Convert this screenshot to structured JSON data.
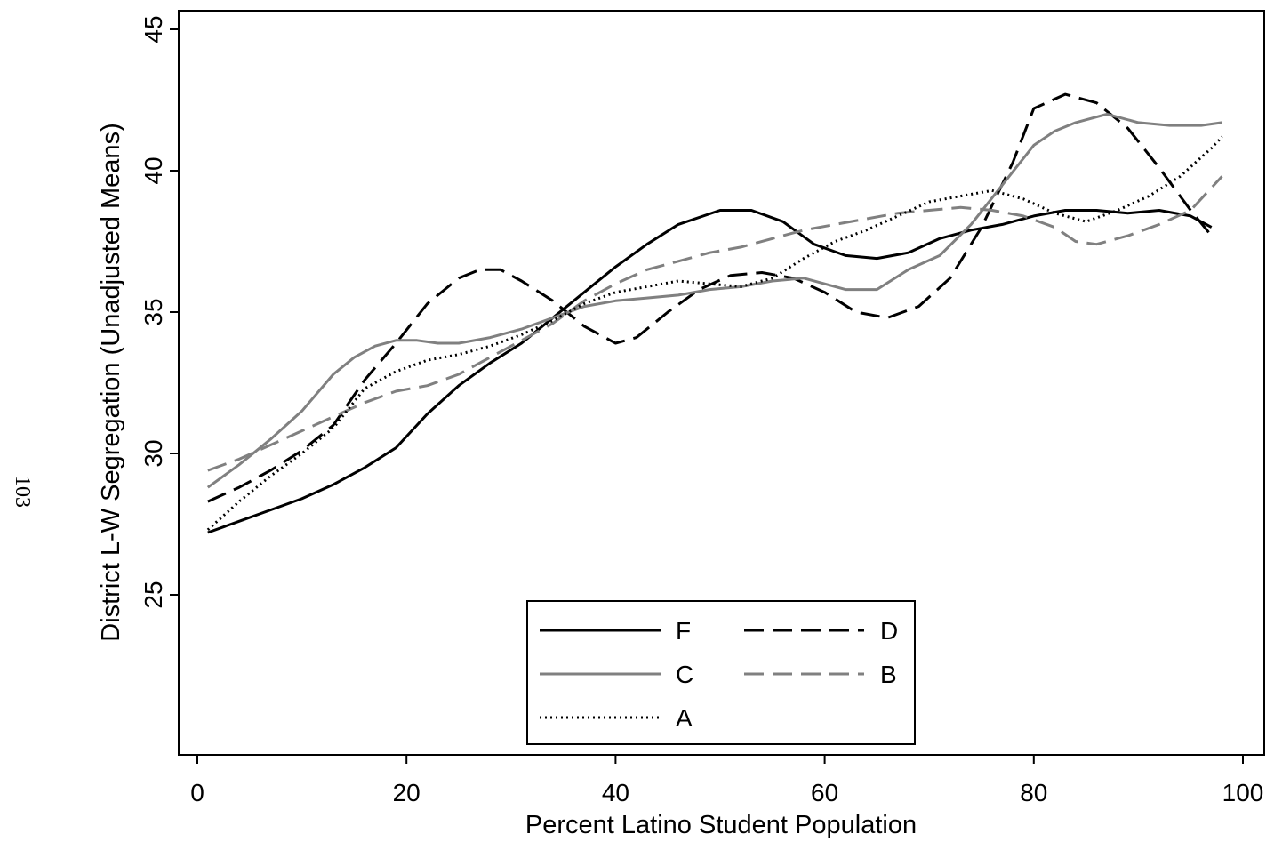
{
  "page_number": "103",
  "chart_data": {
    "type": "line",
    "title": "",
    "xlabel": "Percent Latino Student Population",
    "ylabel": "District L-W Segregation (Unadjusted Means)",
    "xlim": [
      -1,
      101
    ],
    "ylim": [
      19.5,
      46
    ],
    "xticks": [
      0,
      20,
      40,
      60,
      80,
      100
    ],
    "yticks": [
      25,
      30,
      35,
      40,
      45
    ],
    "grid": false,
    "legend_position": "bottom-center",
    "series": [
      {
        "name": "F",
        "color": "#000000",
        "dash": "solid",
        "x": [
          1,
          4,
          7,
          10,
          13,
          16,
          19,
          22,
          25,
          28,
          31,
          34,
          37,
          40,
          43,
          46,
          50,
          53,
          56,
          59,
          62,
          65,
          68,
          71,
          74,
          77,
          80,
          83,
          86,
          89,
          92,
          95,
          97
        ],
        "y": [
          27.2,
          27.6,
          28.0,
          28.4,
          28.9,
          29.5,
          30.2,
          31.4,
          32.4,
          33.2,
          33.9,
          34.8,
          35.7,
          36.6,
          37.4,
          38.1,
          38.6,
          38.6,
          38.2,
          37.4,
          37.0,
          36.9,
          37.1,
          37.6,
          37.9,
          38.1,
          38.4,
          38.6,
          38.6,
          38.5,
          38.6,
          38.4,
          38.0
        ]
      },
      {
        "name": "D",
        "color": "#000000",
        "dash": "dashed",
        "x": [
          1,
          4,
          7,
          10,
          13,
          16,
          19,
          22,
          25,
          27,
          29,
          31,
          34,
          37,
          40,
          42,
          45,
          48,
          51,
          54,
          57,
          60,
          63,
          66,
          69,
          72,
          75,
          78,
          80,
          83,
          86,
          89,
          92,
          95,
          97
        ],
        "y": [
          28.3,
          28.8,
          29.4,
          30.1,
          31.0,
          32.6,
          33.9,
          35.3,
          36.2,
          36.5,
          36.5,
          36.1,
          35.4,
          34.5,
          33.9,
          34.1,
          35.0,
          35.8,
          36.3,
          36.4,
          36.2,
          35.7,
          35.0,
          34.8,
          35.2,
          36.2,
          38.0,
          40.3,
          42.2,
          42.7,
          42.4,
          41.5,
          40.1,
          38.6,
          37.7
        ]
      },
      {
        "name": "C",
        "color": "#808080",
        "dash": "solid",
        "x": [
          1,
          4,
          7,
          10,
          13,
          15,
          17,
          19,
          21,
          23,
          25,
          28,
          31,
          34,
          37,
          40,
          43,
          46,
          49,
          52,
          55,
          58,
          60,
          62,
          65,
          68,
          71,
          74,
          77,
          80,
          82,
          84,
          87,
          90,
          93,
          96,
          98
        ],
        "y": [
          28.8,
          29.6,
          30.5,
          31.5,
          32.8,
          33.4,
          33.8,
          34.0,
          34.0,
          33.9,
          33.9,
          34.1,
          34.4,
          34.8,
          35.2,
          35.4,
          35.5,
          35.6,
          35.8,
          35.9,
          36.1,
          36.2,
          36.0,
          35.8,
          35.8,
          36.5,
          37.0,
          38.1,
          39.5,
          40.9,
          41.4,
          41.7,
          42.0,
          41.7,
          41.6,
          41.6,
          41.7
        ]
      },
      {
        "name": "B",
        "color": "#808080",
        "dash": "dashed",
        "x": [
          1,
          4,
          7,
          10,
          13,
          16,
          19,
          22,
          25,
          28,
          31,
          34,
          37,
          40,
          43,
          46,
          49,
          52,
          55,
          58,
          61,
          64,
          67,
          70,
          73,
          76,
          79,
          82,
          84,
          86,
          89,
          92,
          95,
          98
        ],
        "y": [
          29.4,
          29.8,
          30.3,
          30.8,
          31.3,
          31.8,
          32.2,
          32.4,
          32.8,
          33.4,
          34.0,
          34.6,
          35.4,
          36.0,
          36.5,
          36.8,
          37.1,
          37.3,
          37.6,
          37.9,
          38.1,
          38.3,
          38.5,
          38.6,
          38.7,
          38.6,
          38.4,
          38.0,
          37.5,
          37.4,
          37.7,
          38.1,
          38.6,
          39.8
        ]
      },
      {
        "name": "A",
        "color": "#000000",
        "dash": "dotted",
        "x": [
          1,
          4,
          7,
          10,
          13,
          16,
          19,
          22,
          25,
          28,
          31,
          34,
          37,
          40,
          43,
          46,
          49,
          52,
          55,
          58,
          61,
          64,
          67,
          70,
          73,
          76,
          79,
          82,
          85,
          88,
          91,
          94,
          97,
          98
        ],
        "y": [
          27.3,
          28.3,
          29.2,
          30.0,
          30.9,
          32.3,
          32.9,
          33.3,
          33.5,
          33.8,
          34.2,
          34.7,
          35.3,
          35.7,
          35.9,
          36.1,
          36.0,
          35.9,
          36.2,
          36.9,
          37.5,
          37.9,
          38.4,
          38.9,
          39.1,
          39.3,
          39.0,
          38.5,
          38.2,
          38.6,
          39.1,
          39.8,
          40.8,
          41.2
        ]
      }
    ]
  }
}
